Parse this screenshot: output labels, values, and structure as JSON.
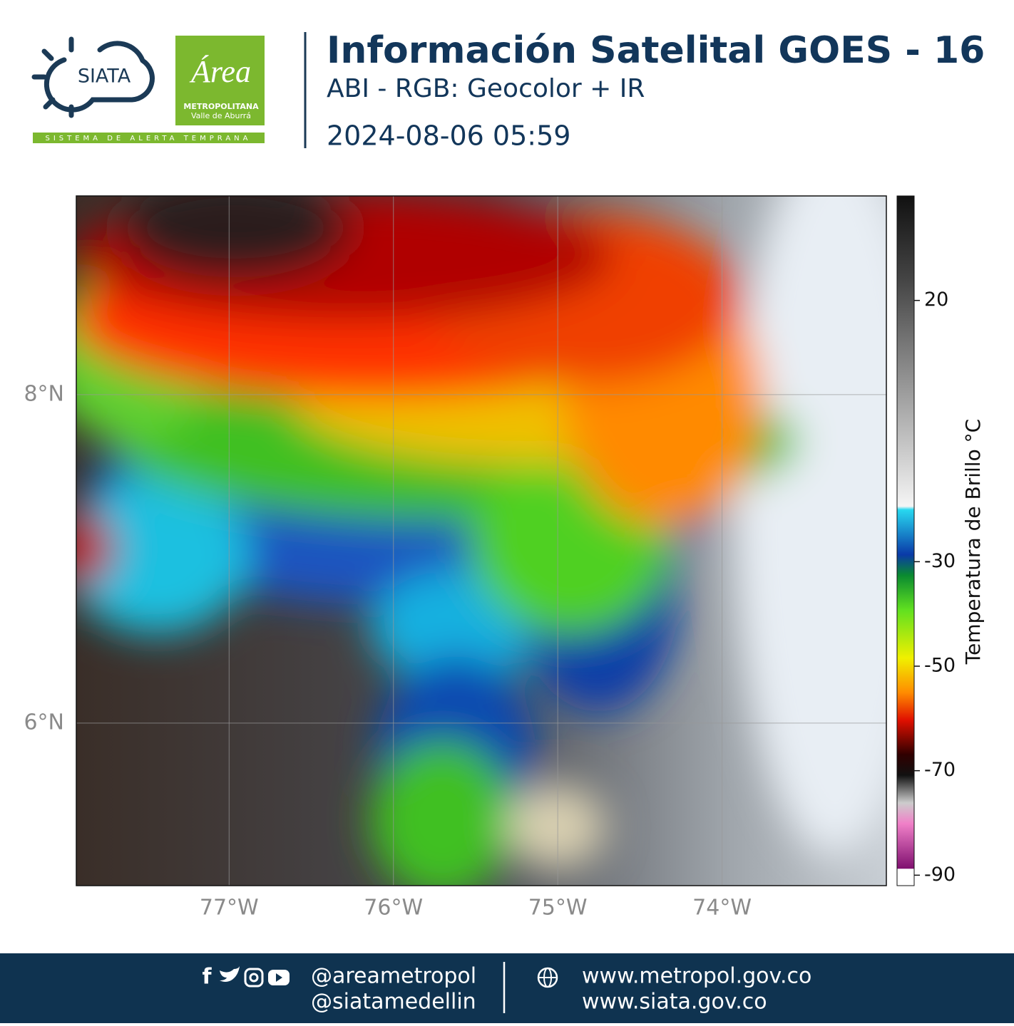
{
  "header": {
    "logo_text": "SIATA",
    "logo_tagline": "SISTEMA DE ALERTA TEMPRANA",
    "partner_logo": {
      "script": "Área",
      "line1": "METROPOLITANA",
      "line2": "Valle de Aburrá"
    },
    "title": "Información Satelital GOES - 16",
    "subtitle": "ABI - RGB: Geocolor + IR",
    "datetime": "2024-08-06 05:59"
  },
  "map": {
    "xlim": [
      -77.93,
      -73.0
    ],
    "ylim": [
      5.01,
      9.21
    ],
    "xticks": [
      {
        "value": -77,
        "label": "77°W"
      },
      {
        "value": -76,
        "label": "76°W"
      },
      {
        "value": -75,
        "label": "75°W"
      },
      {
        "value": -74,
        "label": "74°W"
      }
    ],
    "yticks": [
      {
        "value": 8,
        "label": "8°N"
      },
      {
        "value": 6,
        "label": "6°N"
      }
    ],
    "grid": true
  },
  "colorbar": {
    "label": "Temperatura de Brillo °C",
    "lim": [
      -92,
      40
    ],
    "ticks": [
      20,
      -30,
      -50,
      -70,
      -90
    ]
  },
  "footer": {
    "handles": [
      "@areametropol",
      "@siatamedellin"
    ],
    "websites": [
      "www.metropol.gov.co",
      "www.siata.gov.co"
    ]
  }
}
